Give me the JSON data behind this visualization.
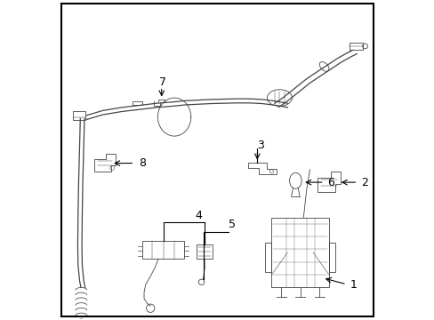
{
  "background_color": "#ffffff",
  "border_color": "#000000",
  "label_color": "#000000",
  "line_color": "#000000",
  "component_color": "#444444",
  "figsize": [
    4.89,
    3.6
  ],
  "dpi": 100
}
